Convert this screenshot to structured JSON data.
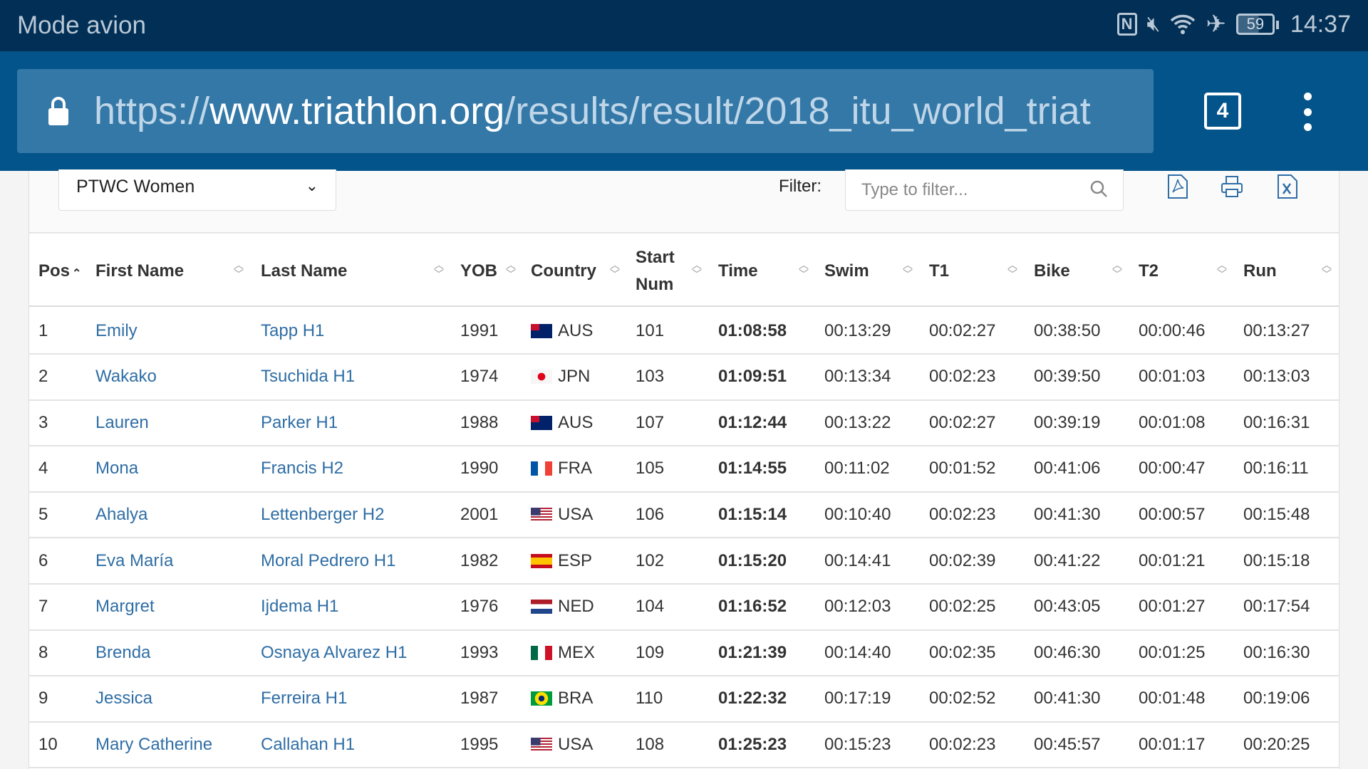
{
  "status_bar": {
    "mode": "Mode avion",
    "battery": "59",
    "time": "14:37",
    "icons": [
      "nfc-icon",
      "mute-icon",
      "wifi-icon",
      "airplane-icon",
      "battery-icon"
    ]
  },
  "browser": {
    "url_scheme": "https://",
    "url_host": "www.triathlon.org",
    "url_path": "/results/result/2018_itu_world_triat",
    "tab_count": "4"
  },
  "controls": {
    "category": "PTWC Women",
    "filter_label": "Filter:",
    "filter_placeholder": "Type to filter...",
    "filter_value": "",
    "tools": [
      "pdf-icon",
      "print-icon",
      "excel-icon"
    ]
  },
  "table": {
    "columns": [
      "Pos",
      "First Name",
      "Last Name",
      "YOB",
      "Country",
      "Start Num",
      "Time",
      "Swim",
      "T1",
      "Bike",
      "T2",
      "Run"
    ],
    "sorted_column": "Pos",
    "rows": [
      [
        "1",
        "Emily",
        "Tapp H1",
        "1991",
        "AUS",
        "101",
        "01:08:58",
        "00:13:29",
        "00:02:27",
        "00:38:50",
        "00:00:46",
        "00:13:27"
      ],
      [
        "2",
        "Wakako",
        "Tsuchida H1",
        "1974",
        "JPN",
        "103",
        "01:09:51",
        "00:13:34",
        "00:02:23",
        "00:39:50",
        "00:01:03",
        "00:13:03"
      ],
      [
        "3",
        "Lauren",
        "Parker H1",
        "1988",
        "AUS",
        "107",
        "01:12:44",
        "00:13:22",
        "00:02:27",
        "00:39:19",
        "00:01:08",
        "00:16:31"
      ],
      [
        "4",
        "Mona",
        "Francis H2",
        "1990",
        "FRA",
        "105",
        "01:14:55",
        "00:11:02",
        "00:01:52",
        "00:41:06",
        "00:00:47",
        "00:16:11"
      ],
      [
        "5",
        "Ahalya",
        "Lettenberger H2",
        "2001",
        "USA",
        "106",
        "01:15:14",
        "00:10:40",
        "00:02:23",
        "00:41:30",
        "00:00:57",
        "00:15:48"
      ],
      [
        "6",
        "Eva María",
        "Moral Pedrero H1",
        "1982",
        "ESP",
        "102",
        "01:15:20",
        "00:14:41",
        "00:02:39",
        "00:41:22",
        "00:01:21",
        "00:15:18"
      ],
      [
        "7",
        "Margret",
        "Ijdema H1",
        "1976",
        "NED",
        "104",
        "01:16:52",
        "00:12:03",
        "00:02:25",
        "00:43:05",
        "00:01:27",
        "00:17:54"
      ],
      [
        "8",
        "Brenda",
        "Osnaya Alvarez H1",
        "1993",
        "MEX",
        "109",
        "01:21:39",
        "00:14:40",
        "00:02:35",
        "00:46:30",
        "00:01:25",
        "00:16:30"
      ],
      [
        "9",
        "Jessica",
        "Ferreira H1",
        "1987",
        "BRA",
        "110",
        "01:22:32",
        "00:17:19",
        "00:02:52",
        "00:41:30",
        "00:01:48",
        "00:19:06"
      ],
      [
        "10",
        "Mary Catherine",
        "Callahan H1",
        "1995",
        "USA",
        "108",
        "01:25:23",
        "00:15:23",
        "00:02:23",
        "00:45:57",
        "00:01:17",
        "00:20:25"
      ]
    ]
  },
  "colors": {
    "status_bg": "#022f55",
    "urlbar_bg": "#03548a",
    "link": "#2f6ea5"
  }
}
